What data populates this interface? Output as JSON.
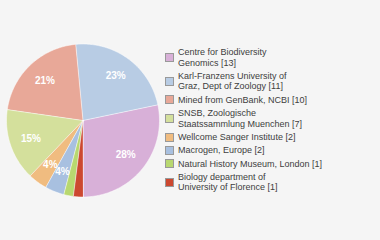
{
  "chart_data": {
    "type": "pie",
    "categories": [
      "Centre for Biodiversity\nGenomics [13]",
      "Karl-Franzens University of\nGraz, Dept of Zoology [11]",
      "Mined from GenBank, NCBI [10]",
      "SNSB, Zoologische\nStaatssammlung Muenchen [7]",
      "Wellcome Sanger Institute [2]",
      "Macrogen, Europe [2]",
      "Natural History Museum, London [1]",
      "Biology department of\nUniversity of Florence [1]"
    ],
    "values": [
      28,
      23,
      21,
      15,
      4,
      4,
      2,
      2
    ],
    "value_labels": [
      "28%",
      "23%",
      "21%",
      "15%",
      "4%",
      "4%",
      null,
      null
    ],
    "colors": [
      "#d8b0d8",
      "#b8cce4",
      "#e8a898",
      "#d4e09c",
      "#f0bc80",
      "#a8c0e0",
      "#b8d870",
      "#cc4830"
    ],
    "data_labels": true,
    "legend": "right"
  }
}
